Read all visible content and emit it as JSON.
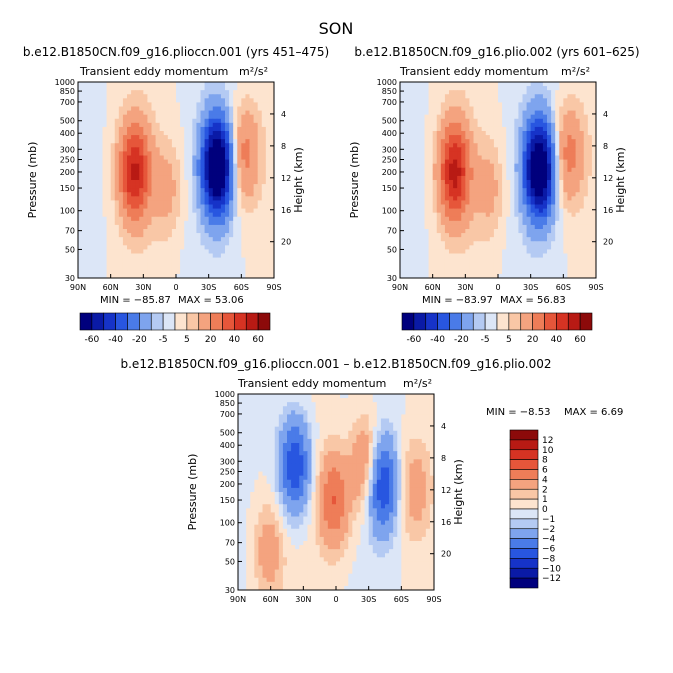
{
  "figure_title": "SON",
  "panels": [
    {
      "title": "b.e12.B1850CN.f09_g16.plioccn.001 (yrs 451–475)",
      "subtitle": "Transient eddy momentum",
      "units": "m²/s²",
      "min_label": "MIN = −85.87",
      "max_label": "MAX = 53.06"
    },
    {
      "title": "b.e12.B1850CN.f09_g16.plio.002 (yrs 601–625)",
      "subtitle": "Transient eddy momentum",
      "units": "m²/s²",
      "min_label": "MIN = −83.97",
      "max_label": "MAX = 56.83"
    },
    {
      "title": "b.e12.B1850CN.f09_g16.plioccn.001 – b.e12.B1850CN.f09_g16.plio.002",
      "subtitle": "Transient eddy momentum",
      "units": "m²/s²",
      "min_label": "MIN = −8.53",
      "max_label": "MAX = 6.69"
    }
  ],
  "axis_labels": {
    "left": "Pressure (mb)",
    "right": "Height (km)"
  },
  "chart_data": [
    {
      "type": "heatmap",
      "x_ticks": [
        "90N",
        "60N",
        "30N",
        "0",
        "30S",
        "60S",
        "90S"
      ],
      "x_range": [
        90,
        -90
      ],
      "y_ticks": [
        "30",
        "50",
        "70",
        "100",
        "150",
        "200",
        "250",
        "300",
        "400",
        "500",
        "700",
        "850",
        "1000"
      ],
      "y_range_mb": [
        1000,
        30
      ],
      "y_right_ticks": [
        "4",
        "8",
        "12",
        "16",
        "20"
      ],
      "levels": [
        -60,
        -50,
        -40,
        -30,
        -20,
        -10,
        -5,
        0,
        5,
        10,
        20,
        30,
        40,
        50,
        60
      ],
      "colorbar_labels": [
        "-60",
        "-40",
        "-20",
        "-5",
        "5",
        "20",
        "40",
        "60"
      ],
      "min": -85.87,
      "max": 53.06,
      "features": [
        {
          "lat": 38,
          "p": 200,
          "value": 50
        },
        {
          "lat": -38,
          "p": 220,
          "value": -85
        },
        {
          "lat": 8,
          "p": 150,
          "value": 12
        },
        {
          "lat": -62,
          "p": 270,
          "value": 25
        }
      ]
    },
    {
      "type": "heatmap",
      "x_ticks": [
        "90N",
        "60N",
        "30N",
        "0",
        "30S",
        "60S",
        "90S"
      ],
      "x_range": [
        90,
        -90
      ],
      "y_ticks": [
        "30",
        "50",
        "70",
        "100",
        "150",
        "200",
        "250",
        "300",
        "400",
        "500",
        "700",
        "850",
        "1000"
      ],
      "y_range_mb": [
        1000,
        30
      ],
      "y_right_ticks": [
        "4",
        "8",
        "12",
        "16",
        "20"
      ],
      "levels": [
        -60,
        -50,
        -40,
        -30,
        -20,
        -10,
        -5,
        0,
        5,
        10,
        20,
        30,
        40,
        50,
        60
      ],
      "colorbar_labels": [
        "-60",
        "-40",
        "-20",
        "-5",
        "5",
        "20",
        "40",
        "60"
      ],
      "min": -83.97,
      "max": 56.83,
      "features": [
        {
          "lat": 40,
          "p": 200,
          "value": 52
        },
        {
          "lat": -38,
          "p": 210,
          "value": -82
        },
        {
          "lat": 8,
          "p": 150,
          "value": 12
        },
        {
          "lat": -64,
          "p": 270,
          "value": 25
        }
      ]
    },
    {
      "type": "heatmap",
      "x_ticks": [
        "90N",
        "60N",
        "30N",
        "0",
        "30S",
        "60S",
        "90S"
      ],
      "x_range": [
        90,
        -90
      ],
      "y_ticks": [
        "30",
        "50",
        "70",
        "100",
        "150",
        "200",
        "250",
        "300",
        "400",
        "500",
        "700",
        "850",
        "1000"
      ],
      "y_range_mb": [
        1000,
        30
      ],
      "y_right_ticks": [
        "4",
        "8",
        "12",
        "16",
        "20"
      ],
      "levels": [
        -12,
        -10,
        -8,
        -6,
        -4,
        -2,
        -1,
        0,
        1,
        2,
        4,
        6,
        8,
        10,
        12
      ],
      "colorbar_labels": [
        "12",
        "10",
        "8",
        "6",
        "4",
        "2",
        "1",
        "0",
        "−1",
        "−2",
        "−4",
        "−6",
        "−8",
        "−10",
        "−12"
      ],
      "min": -8.53,
      "max": 6.69,
      "features": [
        {
          "lat": 38,
          "p": 280,
          "value": -8
        },
        {
          "lat": 2,
          "p": 150,
          "value": 6
        },
        {
          "lat": -42,
          "p": 200,
          "value": -8.5
        },
        {
          "lat": -28,
          "p": 280,
          "value": 5
        },
        {
          "lat": 62,
          "p": 60,
          "value": 3
        },
        {
          "lat": -72,
          "p": 180,
          "value": 3
        }
      ]
    }
  ],
  "colors": {
    "neg": [
      "#00007d",
      "#0a1aa6",
      "#1633c8",
      "#2856e0",
      "#4a7be8",
      "#7ea4ee",
      "#b4caf3",
      "#dce6f7"
    ],
    "pos": [
      "#fde4cf",
      "#f9c7a6",
      "#f4a37f",
      "#ee7d58",
      "#e6563a",
      "#d63323",
      "#b81a14",
      "#8c0a0a"
    ]
  }
}
